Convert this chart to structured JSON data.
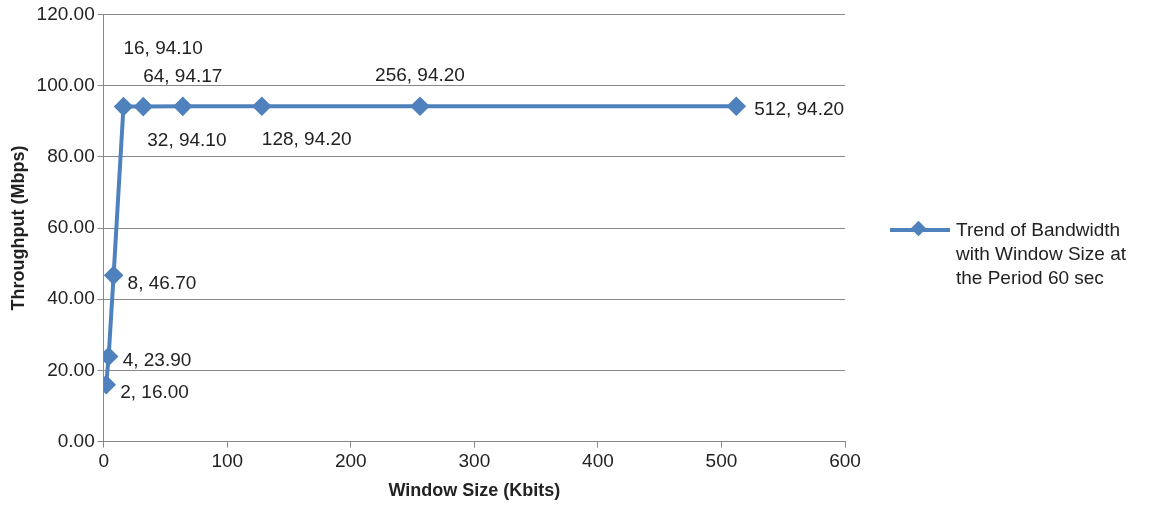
{
  "chart_data": {
    "type": "line",
    "xlabel": "Window Size (Kbits)",
    "ylabel": "Throughput (Mbps)",
    "x": [
      2,
      4,
      8,
      16,
      32,
      64,
      128,
      256,
      512
    ],
    "series": [
      {
        "name": "Trend of Bandwidth with Window Size at the Period 60 sec",
        "color": "#4f81bd",
        "values": [
          16.0,
          23.9,
          46.7,
          94.1,
          94.1,
          94.17,
          94.2,
          94.2,
          94.2
        ],
        "value_labels": [
          "2, 16.00",
          "4, 23.90",
          "8, 46.70",
          "16, 94.10",
          "32, 94.10",
          "64, 94.17",
          "128, 94.20",
          "256, 94.20",
          "512, 94.20"
        ]
      }
    ],
    "xlim": [
      0,
      600
    ],
    "xticks": [
      0,
      100,
      200,
      300,
      400,
      500,
      600
    ],
    "ylim": [
      0,
      120
    ],
    "yticks": [
      {
        "value": 0,
        "label": "0.00"
      },
      {
        "value": 20,
        "label": "20.00"
      },
      {
        "value": 40,
        "label": "40.00"
      },
      {
        "value": 60,
        "label": "60.00"
      },
      {
        "value": 80,
        "label": "80.00"
      },
      {
        "value": 100,
        "label": "100.00"
      },
      {
        "value": 120,
        "label": "120.00"
      }
    ],
    "grid": "y",
    "legend": "right",
    "marker": "diamond",
    "line_style": "solid"
  }
}
